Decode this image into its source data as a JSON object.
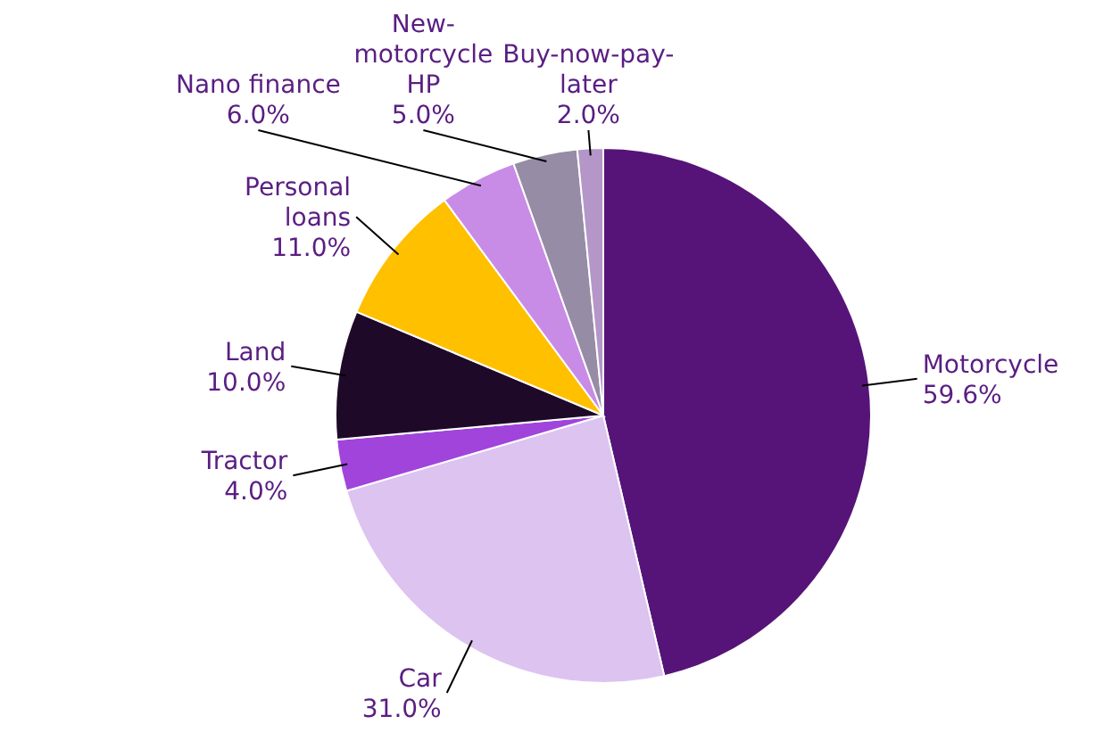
{
  "chart_data": {
    "type": "pie",
    "categories": [
      "Motorcycle",
      "Car",
      "Tractor",
      "Land",
      "Personal loans",
      "Nano finance",
      "New-motorcycle HP",
      "Buy-now-pay-later"
    ],
    "values": [
      59.6,
      31.0,
      4.0,
      10.0,
      11.0,
      6.0,
      5.0,
      2.0
    ],
    "value_labels": [
      "59.6%",
      "31.0%",
      "4.0%",
      "10.0%",
      "11.0%",
      "6.0%",
      "5.0%",
      "2.0%"
    ],
    "colors": [
      "#561478",
      "#dcc3f0",
      "#a044dc",
      "#1e0a28",
      "#ffc000",
      "#c88ce6",
      "#968ca5",
      "#b496c8"
    ]
  }
}
